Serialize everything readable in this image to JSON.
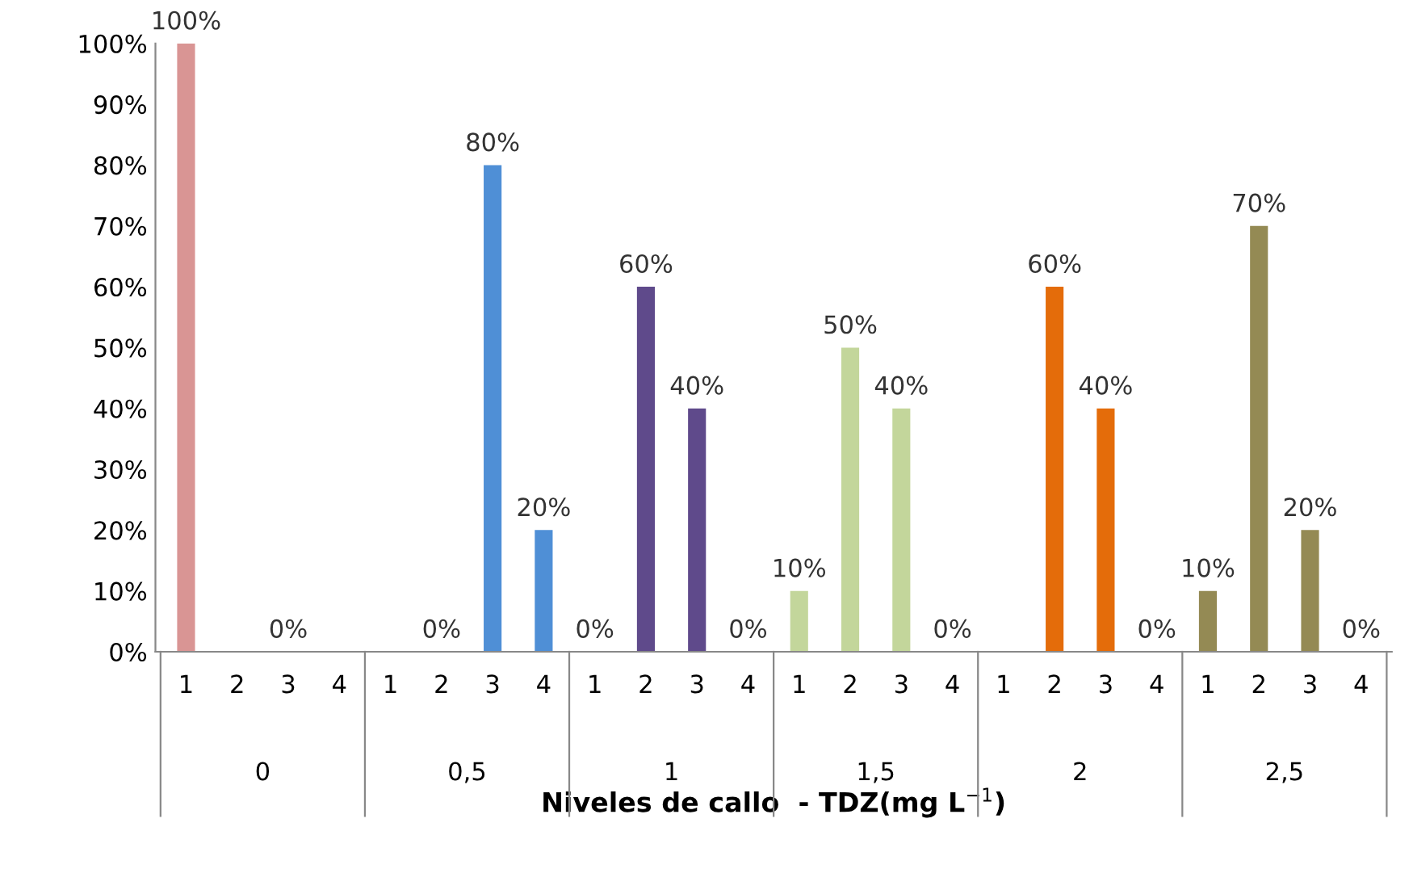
{
  "chart_data": {
    "type": "bar",
    "xlabel": "Niveles de callo  - TDZ(mg L$^{−1}$)",
    "categories": [
      "1",
      "2",
      "3",
      "4",
      "1",
      "2",
      "3",
      "4",
      "1",
      "2",
      "3",
      "4",
      "1",
      "2",
      "3",
      "4",
      "1",
      "2",
      "3",
      "4",
      "1",
      "2",
      "3",
      "4"
    ],
    "values": [
      100,
      0,
      0,
      0,
      0,
      0,
      80,
      20,
      0,
      60,
      40,
      0,
      10,
      50,
      40,
      0,
      0,
      60,
      40,
      0,
      10,
      70,
      20,
      0
    ],
    "value_labels": [
      "100%",
      null,
      "0%",
      null,
      null,
      "0%",
      "80%",
      "20%",
      "0%",
      "60%",
      "40%",
      "0%",
      "10%",
      "50%",
      "40%",
      "0%",
      null,
      "60%",
      "40%",
      "0%",
      "10%",
      "70%",
      "20%",
      "0%"
    ],
    "colors": [
      "#d99594",
      "#d99594",
      "#d99594",
      "#d99594",
      "#4f8fd6",
      "#4f8fd6",
      "#4f8fd6",
      "#4f8fd6",
      "#5f4a8b",
      "#5f4a8b",
      "#5f4a8b",
      "#5f4a8b",
      "#c3d69b",
      "#c3d69b",
      "#c3d69b",
      "#c3d69b",
      "#e46c0a",
      "#e46c0a",
      "#e46c0a",
      "#e46c0a",
      "#948a54",
      "#948a54",
      "#948a54",
      "#948a54"
    ],
    "annotations": [
      "0",
      "0,5",
      "1",
      "1,5",
      "2",
      "2,5"
    ],
    "ylim": [
      0,
      100
    ],
    "yticks": [
      {
        "value": 0,
        "label": "0%"
      },
      {
        "value": 10,
        "label": "10%"
      },
      {
        "value": 20,
        "label": "20%"
      },
      {
        "value": 30,
        "label": "30%"
      },
      {
        "value": 40,
        "label": "40%"
      },
      {
        "value": 50,
        "label": "50%"
      },
      {
        "value": 60,
        "label": "60%"
      },
      {
        "value": 70,
        "label": "70%"
      },
      {
        "value": 80,
        "label": "80%"
      },
      {
        "value": 90,
        "label": "90%"
      },
      {
        "value": 100,
        "label": "100%"
      }
    ],
    "grid": false,
    "legend": false
  }
}
